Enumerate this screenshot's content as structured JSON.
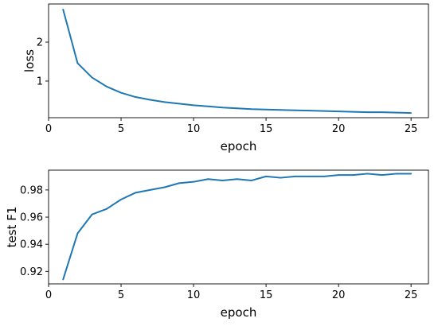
{
  "chart_data": [
    {
      "type": "line",
      "title": "",
      "xlabel": "epoch",
      "ylabel": "loss",
      "xlim": [
        0,
        26.2
      ],
      "ylim": [
        0.06,
        2.98
      ],
      "xticks": [
        0,
        5,
        10,
        15,
        20,
        25
      ],
      "xtick_labels": [
        "0",
        "5",
        "10",
        "15",
        "20",
        "25"
      ],
      "yticks": [
        1,
        2
      ],
      "ytick_labels": [
        "1",
        "2"
      ],
      "grid": false,
      "color": "#1f77b4",
      "series": [
        {
          "x": [
            1,
            2,
            3,
            4,
            5,
            6,
            7,
            8,
            9,
            10,
            11,
            12,
            13,
            14,
            15,
            16,
            17,
            18,
            19,
            20,
            21,
            22,
            23,
            24,
            25
          ],
          "values": [
            2.84,
            1.46,
            1.09,
            0.86,
            0.7,
            0.59,
            0.52,
            0.46,
            0.42,
            0.38,
            0.35,
            0.32,
            0.3,
            0.28,
            0.27,
            0.26,
            0.25,
            0.24,
            0.23,
            0.22,
            0.21,
            0.2,
            0.2,
            0.19,
            0.18
          ]
        }
      ]
    },
    {
      "type": "line",
      "title": "",
      "xlabel": "epoch",
      "ylabel": "test F1",
      "xlim": [
        0,
        26.2
      ],
      "ylim": [
        0.9108,
        0.9946
      ],
      "xticks": [
        0,
        5,
        10,
        15,
        20,
        25
      ],
      "xtick_labels": [
        "0",
        "5",
        "10",
        "15",
        "20",
        "25"
      ],
      "yticks": [
        0.92,
        0.94,
        0.96,
        0.98
      ],
      "ytick_labels": [
        "0.92",
        "0.94",
        "0.96",
        "0.98"
      ],
      "grid": false,
      "color": "#1f77b4",
      "series": [
        {
          "x": [
            1,
            2,
            3,
            4,
            5,
            6,
            7,
            8,
            9,
            10,
            11,
            12,
            13,
            14,
            15,
            16,
            17,
            18,
            19,
            20,
            21,
            22,
            23,
            24,
            25
          ],
          "values": [
            0.914,
            0.948,
            0.962,
            0.966,
            0.973,
            0.978,
            0.98,
            0.982,
            0.985,
            0.986,
            0.988,
            0.987,
            0.988,
            0.987,
            0.99,
            0.989,
            0.99,
            0.99,
            0.99,
            0.991,
            0.991,
            0.992,
            0.991,
            0.992,
            0.992
          ]
        }
      ]
    }
  ]
}
